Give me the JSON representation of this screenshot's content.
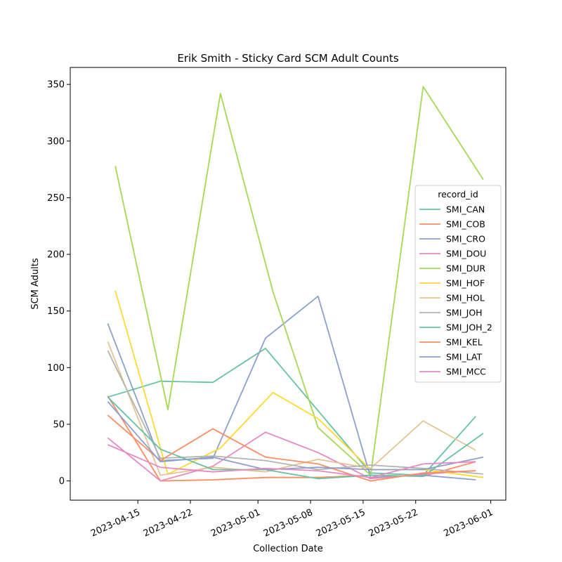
{
  "chart_data": {
    "type": "line",
    "title": "Erik Smith - Sticky Card SCM Adult Counts",
    "xlabel": "Collection Date",
    "ylabel": "SCM Adults",
    "x_ticks": [
      "2023-04-15",
      "2023-04-22",
      "2023-05-01",
      "2023-05-08",
      "2023-05-15",
      "2023-05-22",
      "2023-06-01"
    ],
    "y_ticks": [
      0,
      50,
      100,
      150,
      200,
      250,
      300,
      350
    ],
    "xlim": [
      "2023-04-06",
      "2023-06-03"
    ],
    "ylim": [
      -17,
      365
    ],
    "grid": false,
    "legend": {
      "title": "record_id",
      "placement": "right"
    },
    "series": [
      {
        "name": "SMI_CAN",
        "color": "#66c2a5",
        "points": [
          [
            "2023-04-11",
            74
          ],
          [
            "2023-04-18",
            88
          ],
          [
            "2023-04-25",
            87
          ],
          [
            "2023-05-02",
            117
          ],
          [
            "2023-05-16",
            7
          ],
          [
            "2023-05-23",
            5
          ],
          [
            "2023-05-30",
            57
          ]
        ]
      },
      {
        "name": "SMI_COB",
        "color": "#fc8d62",
        "points": [
          [
            "2023-04-11",
            75
          ],
          [
            "2023-04-18",
            0
          ],
          [
            "2023-04-25",
            1
          ],
          [
            "2023-05-02",
            3
          ],
          [
            "2023-05-09",
            3
          ],
          [
            "2023-05-16",
            5
          ],
          [
            "2023-05-23",
            4
          ],
          [
            "2023-05-30",
            17
          ]
        ]
      },
      {
        "name": "SMI_CRO",
        "color": "#8da0cb",
        "points": [
          [
            "2023-04-11",
            139
          ],
          [
            "2023-04-18",
            18
          ],
          [
            "2023-04-25",
            20
          ],
          [
            "2023-05-02",
            126
          ],
          [
            "2023-05-09",
            163
          ],
          [
            "2023-05-16",
            3
          ],
          [
            "2023-05-23",
            5
          ],
          [
            "2023-05-30",
            1
          ]
        ]
      },
      {
        "name": "SMI_DOU",
        "color": "#e78ac3",
        "points": [
          [
            "2023-04-11",
            38
          ],
          [
            "2023-04-18",
            0
          ],
          [
            "2023-04-25",
            13
          ],
          [
            "2023-05-02",
            43
          ],
          [
            "2023-05-09",
            25
          ],
          [
            "2023-05-16",
            2
          ],
          [
            "2023-05-23",
            6
          ],
          [
            "2023-05-30",
            9
          ]
        ]
      },
      {
        "name": "SMI_DUR",
        "color": "#a6d854",
        "points": [
          [
            "2023-04-12",
            278
          ],
          [
            "2023-04-19",
            63
          ],
          [
            "2023-04-26",
            342
          ],
          [
            "2023-05-03",
            167
          ],
          [
            "2023-05-09",
            47
          ],
          [
            "2023-05-16",
            5
          ],
          [
            "2023-05-23",
            348
          ],
          [
            "2023-05-31",
            266
          ]
        ]
      },
      {
        "name": "SMI_HOF",
        "color": "#ffd92f",
        "points": [
          [
            "2023-04-12",
            168
          ],
          [
            "2023-04-19",
            6
          ],
          [
            "2023-04-26",
            29
          ],
          [
            "2023-05-03",
            78
          ],
          [
            "2023-05-09",
            55
          ],
          [
            "2023-05-16",
            10
          ],
          [
            "2023-05-23",
            10
          ],
          [
            "2023-05-31",
            3
          ]
        ]
      },
      {
        "name": "SMI_HOL",
        "color": "#e5c494",
        "points": [
          [
            "2023-04-11",
            123
          ],
          [
            "2023-04-18",
            5
          ],
          [
            "2023-04-25",
            12
          ],
          [
            "2023-05-02",
            8
          ],
          [
            "2023-05-09",
            19
          ],
          [
            "2023-05-16",
            11
          ],
          [
            "2023-05-23",
            53
          ],
          [
            "2023-05-30",
            27
          ]
        ]
      },
      {
        "name": "SMI_JOH",
        "color": "#b3b3b3",
        "points": [
          [
            "2023-04-11",
            115
          ],
          [
            "2023-04-18",
            20
          ],
          [
            "2023-04-25",
            22
          ],
          [
            "2023-05-02",
            18
          ],
          [
            "2023-05-09",
            10
          ],
          [
            "2023-05-16",
            14
          ],
          [
            "2023-05-23",
            11
          ],
          [
            "2023-05-31",
            6
          ]
        ]
      },
      {
        "name": "SMI_JOH_2",
        "color": "#66c2a5",
        "points": [
          [
            "2023-04-11",
            74
          ],
          [
            "2023-04-18",
            28
          ],
          [
            "2023-04-25",
            10
          ],
          [
            "2023-05-02",
            10
          ],
          [
            "2023-05-09",
            2
          ],
          [
            "2023-05-16",
            5
          ],
          [
            "2023-05-23",
            4
          ],
          [
            "2023-05-31",
            42
          ]
        ]
      },
      {
        "name": "SMI_KEL",
        "color": "#fc8d62",
        "points": [
          [
            "2023-04-11",
            58
          ],
          [
            "2023-04-18",
            18
          ],
          [
            "2023-04-25",
            46
          ],
          [
            "2023-05-02",
            21
          ],
          [
            "2023-05-09",
            15
          ],
          [
            "2023-05-16",
            0
          ],
          [
            "2023-05-23",
            7
          ],
          [
            "2023-05-30",
            9
          ]
        ]
      },
      {
        "name": "SMI_LAT",
        "color": "#8da0cb",
        "points": [
          [
            "2023-04-11",
            70
          ],
          [
            "2023-04-18",
            17
          ],
          [
            "2023-04-25",
            21
          ],
          [
            "2023-05-02",
            10
          ],
          [
            "2023-05-09",
            12
          ],
          [
            "2023-05-16",
            10
          ],
          [
            "2023-05-23",
            10
          ],
          [
            "2023-05-31",
            21
          ]
        ]
      },
      {
        "name": "SMI_MCC",
        "color": "#e78ac3",
        "points": [
          [
            "2023-04-11",
            32
          ],
          [
            "2023-04-18",
            12
          ],
          [
            "2023-04-25",
            8
          ],
          [
            "2023-05-02",
            11
          ],
          [
            "2023-05-09",
            9
          ],
          [
            "2023-05-16",
            3
          ],
          [
            "2023-05-23",
            15
          ],
          [
            "2023-05-30",
            17
          ]
        ]
      }
    ]
  }
}
